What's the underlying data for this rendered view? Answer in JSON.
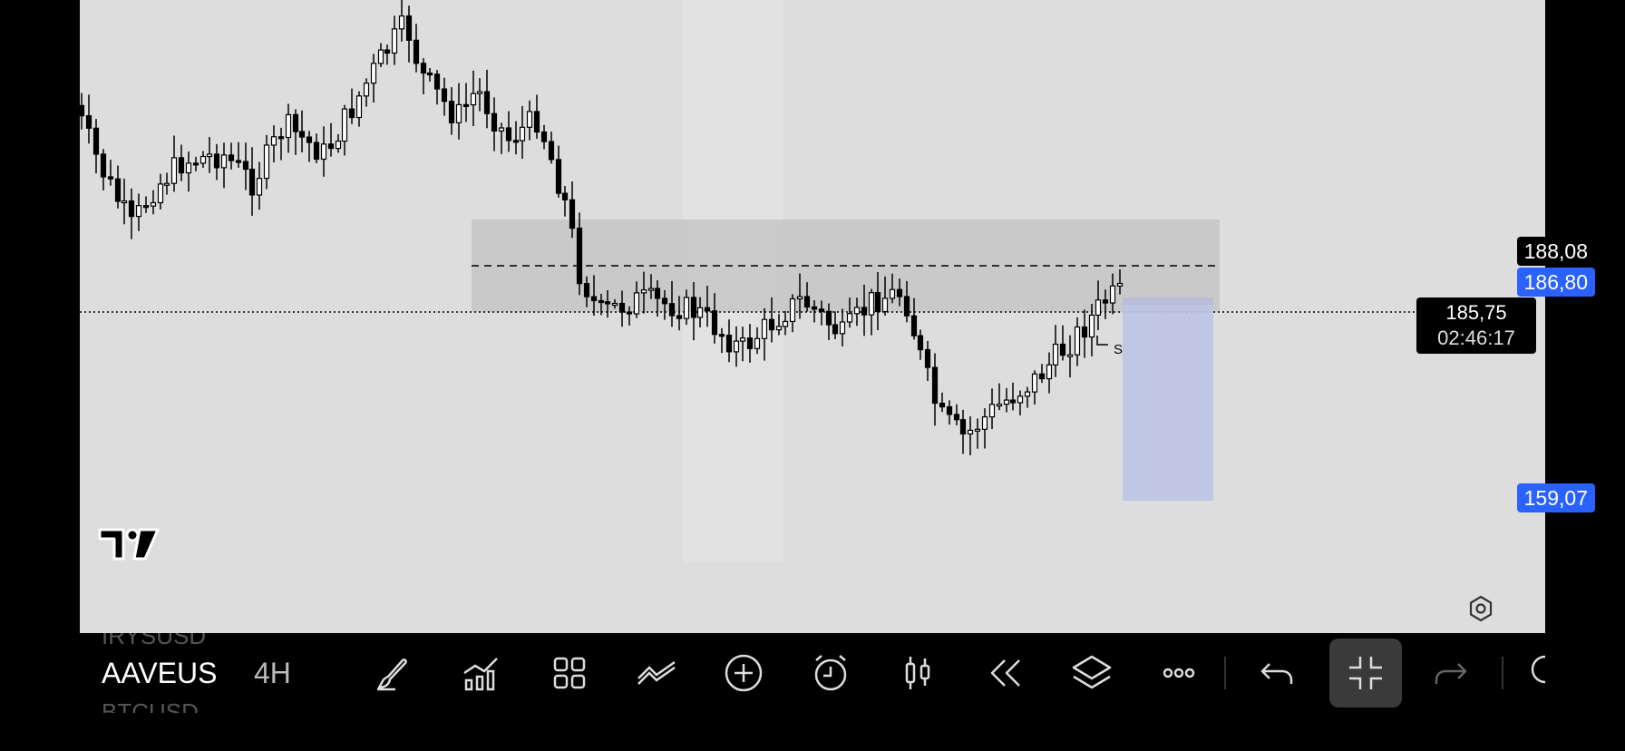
{
  "chart": {
    "price_labels": {
      "zone_top": "188,08",
      "entry": "186,80",
      "last_price": "185,75",
      "countdown": "02:46:17",
      "target": "159,07"
    },
    "colors": {
      "background": "#dddddd",
      "zone": "#c4c4c4",
      "target_box": "#bfc6e4",
      "label_blue": "#2962ff",
      "label_black": "#000000"
    },
    "marker_text": "S"
  },
  "toolbar": {
    "symbol": "AAVEUS",
    "symbol_prev": "IRYSUSD",
    "symbol_next": "BTCUSD",
    "interval": "4H",
    "icons": [
      "brush-icon",
      "indicators-icon",
      "layout-grid-icon",
      "drawing-tools-icon",
      "add-icon",
      "alert-clock-icon",
      "candle-type-icon",
      "replay-icon",
      "layers-icon",
      "more-icon",
      "undo-icon",
      "exit-fullscreen-icon",
      "redo-icon"
    ]
  }
}
